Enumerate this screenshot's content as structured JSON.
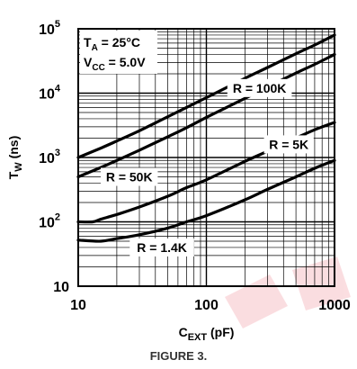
{
  "chart_data": {
    "type": "line",
    "title": "",
    "x_axis": {
      "label_base": "C",
      "label_sub": "EXT",
      "label_unit": " (pF)",
      "scale": "log",
      "range": [
        10,
        1000
      ],
      "tick_labels": [
        "10",
        "100",
        "1000"
      ],
      "tick_values": [
        10,
        100,
        1000
      ]
    },
    "y_axis": {
      "label_base": "T",
      "label_sub": "W",
      "label_unit": " (ns)",
      "scale": "log",
      "range": [
        10,
        100000
      ],
      "tick_values": [
        10,
        100,
        1000,
        10000,
        100000
      ],
      "tick_labels": [
        {
          "base": "10",
          "exp": ""
        },
        {
          "base": "10",
          "exp": "2"
        },
        {
          "base": "10",
          "exp": "3"
        },
        {
          "base": "10",
          "exp": "4"
        },
        {
          "base": "10",
          "exp": "5"
        }
      ]
    },
    "grid": true,
    "conditions": [
      {
        "base": "T",
        "sub": "A",
        "rest": " = 25°C"
      },
      {
        "base": "V",
        "sub": "CC",
        "rest": " = 5.0V"
      }
    ],
    "series": [
      {
        "name": "R = 100K",
        "x": [
          10,
          15,
          20,
          30,
          50,
          70,
          100,
          200,
          300,
          500,
          700,
          1000
        ],
        "y": [
          1000,
          1400,
          1800,
          2600,
          4300,
          6000,
          8500,
          17000,
          25000,
          41000,
          56000,
          80000
        ]
      },
      {
        "name": "R = 50K",
        "x": [
          10,
          15,
          20,
          30,
          50,
          70,
          100,
          200,
          300,
          500,
          700,
          1000
        ],
        "y": [
          500,
          700,
          900,
          1300,
          2100,
          2900,
          4200,
          8300,
          12500,
          20500,
          28000,
          40000
        ]
      },
      {
        "name": "R = 5K",
        "x": [
          10,
          13,
          15,
          20,
          30,
          50,
          70,
          100,
          200,
          300,
          500,
          700,
          1000
        ],
        "y": [
          100,
          100,
          110,
          130,
          170,
          250,
          340,
          450,
          870,
          1250,
          2000,
          2700,
          3500
        ]
      },
      {
        "name": "R = 1.4K",
        "x": [
          10,
          15,
          20,
          30,
          50,
          70,
          100,
          200,
          300,
          500,
          700,
          1000
        ],
        "y": [
          52,
          50,
          55,
          63,
          80,
          100,
          125,
          220,
          320,
          500,
          680,
          900
        ]
      }
    ],
    "curve_labels": [
      {
        "text": "R = 100K",
        "x": 260,
        "y": 12000
      },
      {
        "text": "R = 50K",
        "x": 25,
        "y": 500
      },
      {
        "text": "R = 5K",
        "x": 440,
        "y": 1600
      },
      {
        "text": "R = 1.4K",
        "x": 45,
        "y": 40
      }
    ]
  },
  "figure_caption": "FIGURE 3."
}
